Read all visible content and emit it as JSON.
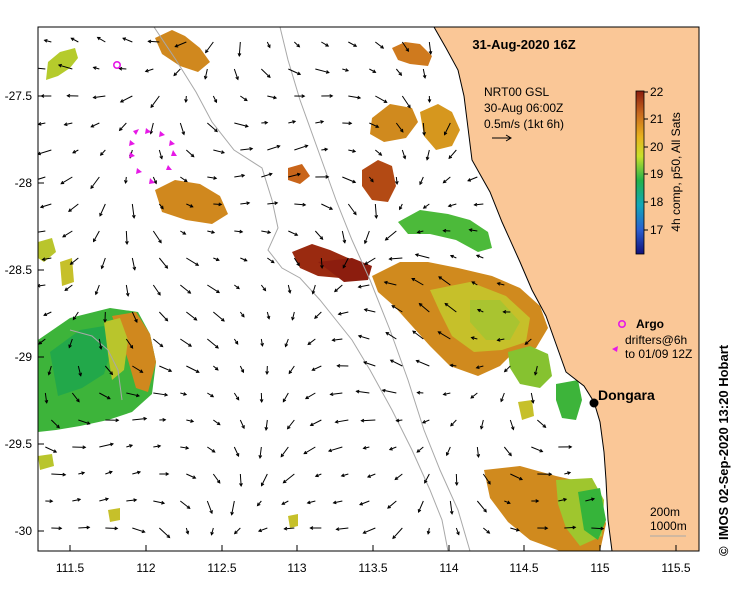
{
  "title": "31-Aug-2020 16Z",
  "credit": "IMOS 02-Sep-2020 13:20 Hobart",
  "copyright_symbol": "©",
  "place": {
    "name": "Dongara",
    "lon": 114.93,
    "lat": -29.25
  },
  "currents_note": {
    "line1": "NRT00 GSL",
    "line2": "30-Aug 06:00Z",
    "line3": "0.5m/s (1kt 6h)"
  },
  "colorbar": {
    "label": "4h comp, p50, All Sats",
    "min": 16,
    "max": 22,
    "ticks": [
      "17",
      "18",
      "19",
      "20",
      "21",
      "22"
    ]
  },
  "legend": {
    "argo": "Argo",
    "drifters_line1": "drifters@6h",
    "drifters_line2": "to 01/09 12Z"
  },
  "isobaths": {
    "a": "200m",
    "b": "1000m"
  },
  "axes": {
    "x_ticks": [
      "111.5",
      "112",
      "112.5",
      "113",
      "113.5",
      "114",
      "114.5",
      "115",
      "115.5"
    ],
    "y_ticks": [
      "-27.5",
      "-28",
      "-28.5",
      "-29",
      "-29.5",
      "-30"
    ],
    "lon_range": [
      111.3,
      115.65
    ],
    "lat_range": [
      -30.1,
      -27.1
    ]
  },
  "colors": {
    "land": "#fac797",
    "argo": "#e619e6",
    "isobath": "#a8a8a8"
  }
}
